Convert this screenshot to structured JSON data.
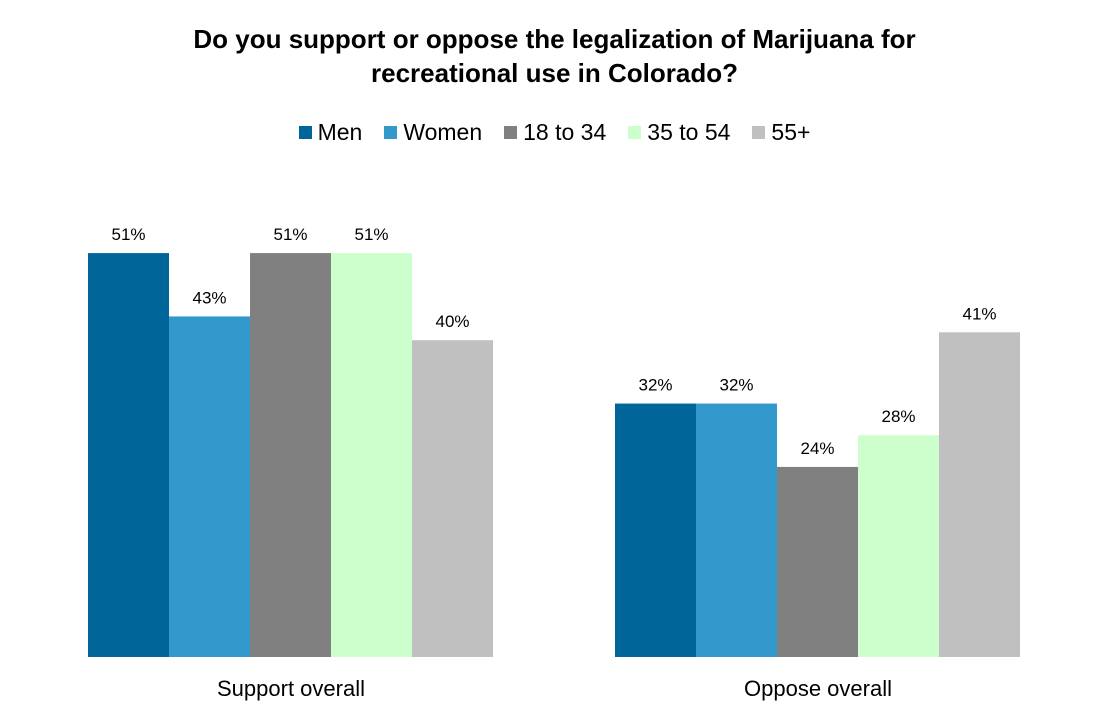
{
  "chart_data": {
    "type": "bar",
    "title_lines": [
      "Do you support or oppose the legalization of Marijuana for",
      "recreational use in Colorado?"
    ],
    "categories": [
      "Support overall",
      "Oppose overall"
    ],
    "series": [
      {
        "name": "Men",
        "color": "#006699",
        "values": [
          51,
          32
        ],
        "labels": [
          "51%",
          "32%"
        ]
      },
      {
        "name": "Women",
        "color": "#3399cc",
        "values": [
          43,
          32
        ],
        "labels": [
          "43%",
          "32%"
        ]
      },
      {
        "name": "18 to 34",
        "color": "#808080",
        "values": [
          51,
          24
        ],
        "labels": [
          "51%",
          "24%"
        ]
      },
      {
        "name": "35 to 54",
        "color": "#ccffcc",
        "values": [
          51,
          28
        ],
        "labels": [
          "51%",
          "28%"
        ]
      },
      {
        "name": "55+",
        "color": "#c0c0c0",
        "values": [
          40,
          41
        ],
        "labels": [
          "40%",
          "41%"
        ]
      }
    ],
    "ylim": [
      0,
      55
    ],
    "grid": false,
    "legend_position": "top"
  }
}
